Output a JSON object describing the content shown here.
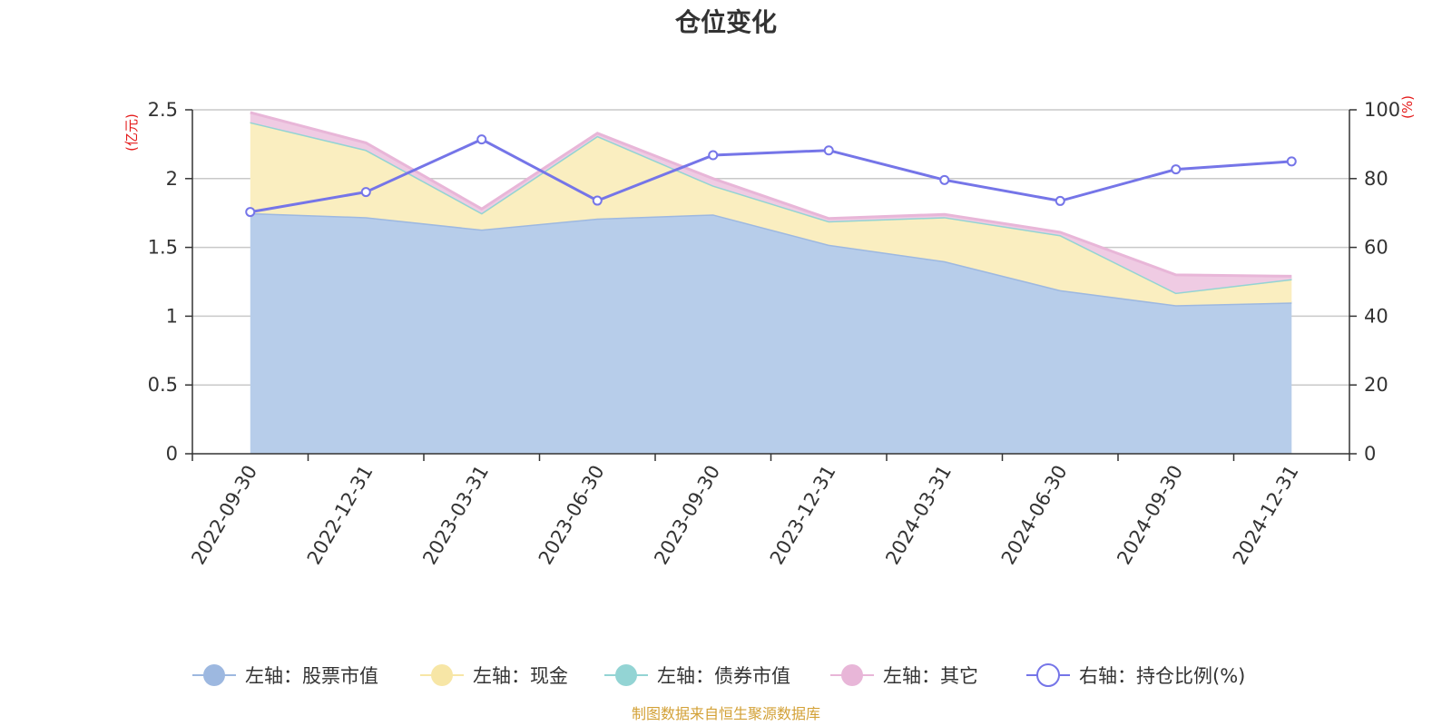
{
  "chart_data": {
    "type": "area",
    "title": "仓位变化",
    "categories": [
      "2022-09-30",
      "2022-12-31",
      "2023-03-31",
      "2023-06-30",
      "2023-09-30",
      "2023-12-31",
      "2024-03-31",
      "2024-06-30",
      "2024-09-30",
      "2024-12-31"
    ],
    "left_axis": {
      "unit": "(亿元)",
      "ylim": [
        0,
        2.5
      ],
      "ticks": [
        "0",
        "0.5",
        "1",
        "1.5",
        "2",
        "2.5"
      ]
    },
    "right_axis": {
      "unit": "(%)",
      "ylim": [
        0,
        100
      ],
      "ticks": [
        "0",
        "20",
        "40",
        "60",
        "80",
        "100"
      ]
    },
    "series": [
      {
        "name": "左轴：股票市值",
        "axis": "left",
        "kind": "stacked-area",
        "color": "#9db8e0",
        "fill": "#b7cdea",
        "values": [
          1.75,
          1.72,
          1.63,
          1.71,
          1.74,
          1.52,
          1.4,
          1.19,
          1.08,
          1.1
        ]
      },
      {
        "name": "左轴：现金",
        "axis": "left",
        "kind": "stacked-area",
        "color": "#f7e6a6",
        "fill": "#faeec0",
        "values": [
          0.66,
          0.49,
          0.12,
          0.6,
          0.21,
          0.17,
          0.32,
          0.4,
          0.09,
          0.17
        ]
      },
      {
        "name": "左轴：债券市值",
        "axis": "left",
        "kind": "stacked-area",
        "color": "#93d4d4",
        "fill": "#bfe6e6",
        "values": [
          0,
          0,
          0,
          0,
          0,
          0,
          0,
          0,
          0,
          0
        ]
      },
      {
        "name": "左轴：其它",
        "axis": "left",
        "kind": "stacked-area",
        "color": "#e8b6d8",
        "fill": "#efcbe3",
        "values": [
          0.07,
          0.05,
          0.03,
          0.02,
          0.05,
          0.02,
          0.02,
          0.02,
          0.13,
          0.02
        ]
      },
      {
        "name": "右轴：持仓比例(%)",
        "axis": "right",
        "kind": "line",
        "color": "#7575e8",
        "values": [
          70.3,
          76.1,
          91.4,
          73.6,
          86.8,
          88.2,
          79.6,
          73.5,
          82.7,
          85.0
        ]
      }
    ],
    "legend_position": "bottom"
  },
  "source_note": "制图数据来自恒生聚源数据库"
}
